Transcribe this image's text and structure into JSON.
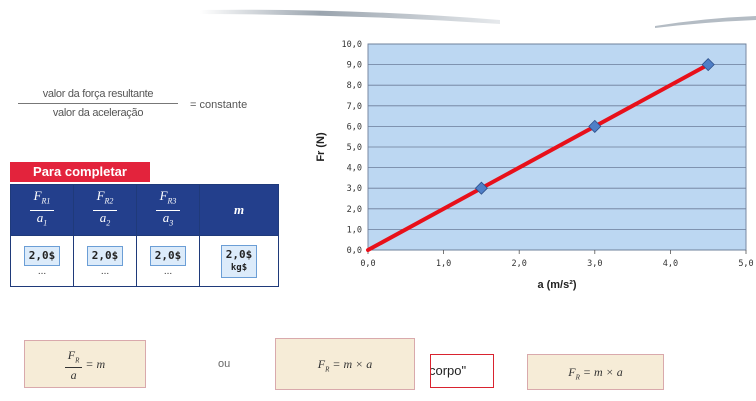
{
  "formula": {
    "numerator": "valor da força resultante",
    "denominator": "valor da aceleração",
    "result": "= constante"
  },
  "label": "Para completar",
  "table": {
    "headers": [
      {
        "top": "F",
        "top_sub": "R1",
        "bottom": "a",
        "bottom_sub": "1"
      },
      {
        "top": "F",
        "top_sub": "R2",
        "bottom": "a",
        "bottom_sub": "2"
      },
      {
        "top": "F",
        "top_sub": "R3",
        "bottom": "a",
        "bottom_sub": "3"
      }
    ],
    "mass_header": "m",
    "cells": [
      {
        "value": "2,0$",
        "dots": "..."
      },
      {
        "value": "2,0$",
        "dots": "..."
      },
      {
        "value": "2,0$",
        "dots": "..."
      }
    ],
    "mass_cell": {
      "value": "2,0$",
      "unit": "kg$"
    }
  },
  "chart_data": {
    "type": "line",
    "xlabel": "a (m/s²)",
    "ylabel": "Fr (N)",
    "xlim": [
      0,
      5
    ],
    "ylim": [
      0,
      10
    ],
    "x_ticks": [
      "0,0",
      "1,0",
      "2,0",
      "3,0",
      "4,0",
      "5,0"
    ],
    "y_ticks": [
      "0,0",
      "1,0",
      "2,0",
      "3,0",
      "4,0",
      "5,0",
      "6,0",
      "7,0",
      "8,0",
      "9,0",
      "10,0"
    ],
    "grid": "horizontal",
    "points": [
      {
        "x": 1.5,
        "y": 3.0
      },
      {
        "x": 3.0,
        "y": 6.0
      },
      {
        "x": 4.5,
        "y": 9.0
      }
    ],
    "fit_line": [
      {
        "x": 0.0,
        "y": 0.0
      },
      {
        "x": 4.5,
        "y": 9.0
      }
    ],
    "colors": {
      "plot_bg": "#bcd7f2",
      "line": "#e8101a",
      "marker": "#4f7fc7",
      "grid": "#6b7d99"
    }
  },
  "bottom": {
    "box1": {
      "num": "F",
      "num_sub": "R",
      "den": "a",
      "rhs": "= m"
    },
    "or": "ou",
    "box2": "F",
    "box2_sub": "R",
    "box2_rhs": " = m × a",
    "corpo_text": "corpo\"",
    "box3": "F",
    "box3_sub": "R",
    "box3_rhs": " = m × a"
  }
}
